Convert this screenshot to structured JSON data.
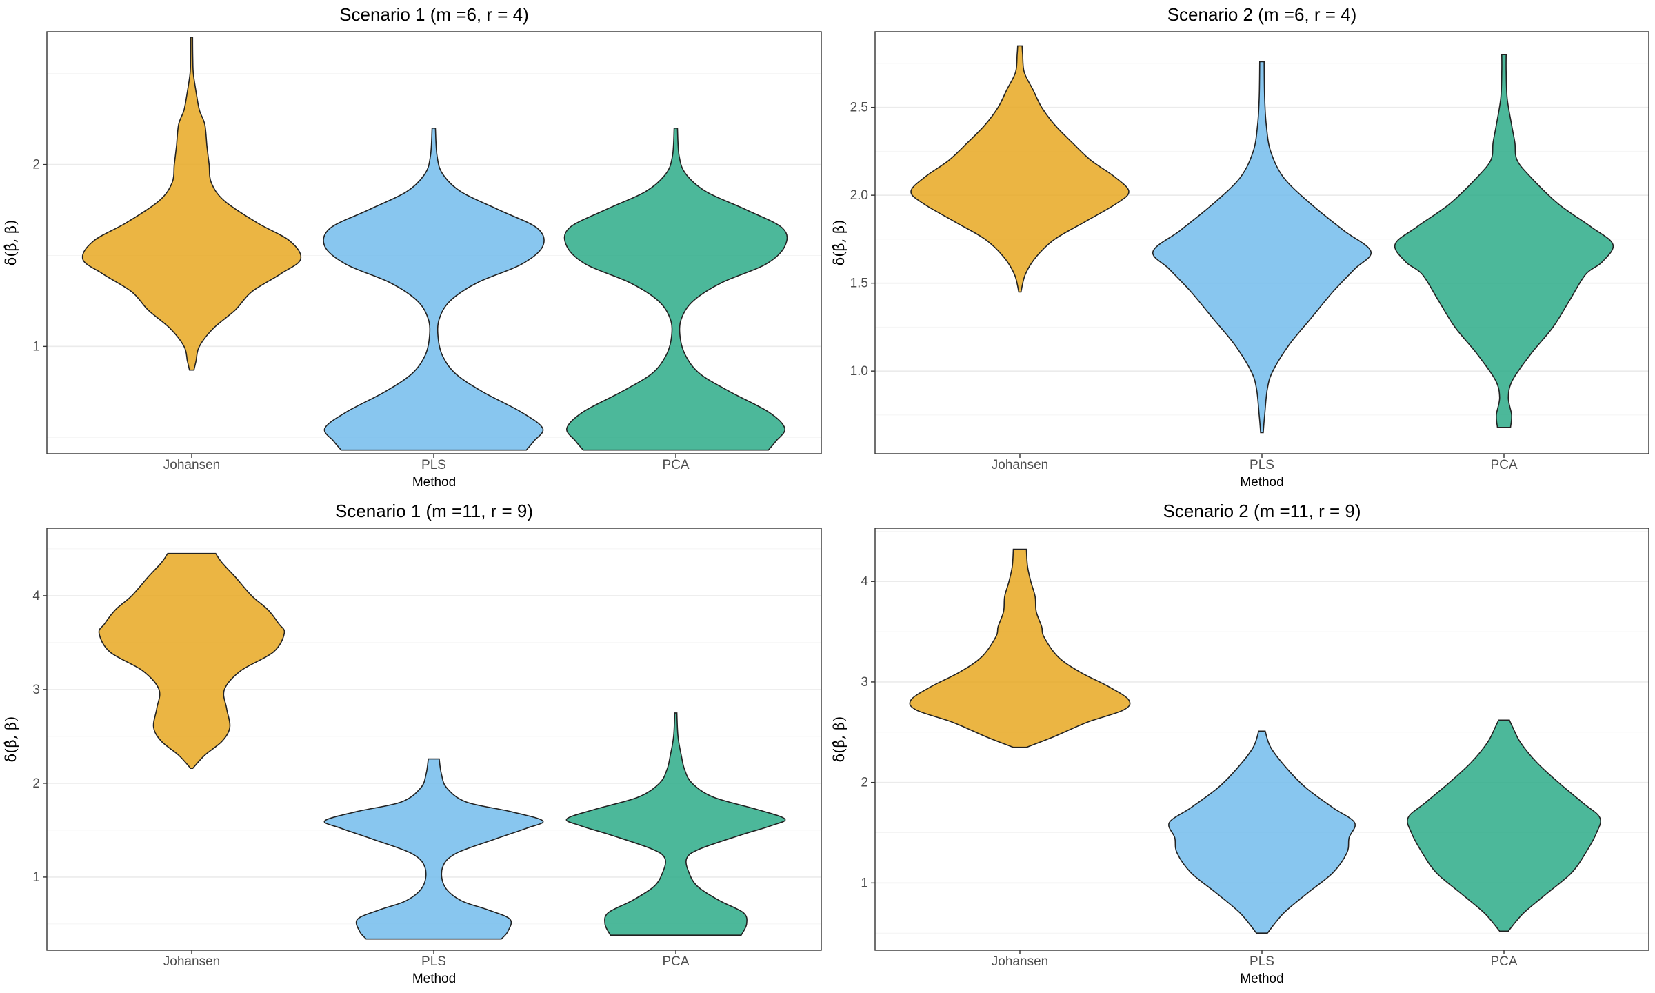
{
  "chart_data": [
    {
      "type": "violin",
      "title": "Scenario 1 (m =6, r = 4)",
      "xlabel": "Method",
      "ylabel": "δ(β̂, β)",
      "categories": [
        "Johansen",
        "PLS",
        "PCA"
      ],
      "ylim": [
        0.41,
        2.73
      ],
      "yticks": [
        1,
        2
      ],
      "ytick_labels": [
        "1",
        "2"
      ],
      "series": [
        {
          "name": "Johansen",
          "color": "#E7A51A",
          "density": [
            [
              0.87,
              0.02
            ],
            [
              0.92,
              0.04
            ],
            [
              1.0,
              0.07
            ],
            [
              1.1,
              0.2
            ],
            [
              1.2,
              0.4
            ],
            [
              1.3,
              0.55
            ],
            [
              1.4,
              0.82
            ],
            [
              1.48,
              1.0
            ],
            [
              1.58,
              0.9
            ],
            [
              1.68,
              0.6
            ],
            [
              1.8,
              0.3
            ],
            [
              1.9,
              0.18
            ],
            [
              2.0,
              0.16
            ],
            [
              2.1,
              0.14
            ],
            [
              2.22,
              0.12
            ],
            [
              2.3,
              0.07
            ],
            [
              2.4,
              0.04
            ],
            [
              2.5,
              0.015
            ],
            [
              2.58,
              0.01
            ],
            [
              2.7,
              0.008
            ]
          ]
        },
        {
          "name": "PLS",
          "color": "#6EBAEB",
          "density": [
            [
              0.43,
              0.85
            ],
            [
              0.48,
              0.92
            ],
            [
              0.55,
              1.0
            ],
            [
              0.64,
              0.8
            ],
            [
              0.75,
              0.45
            ],
            [
              0.85,
              0.2
            ],
            [
              0.95,
              0.08
            ],
            [
              1.05,
              0.04
            ],
            [
              1.15,
              0.05
            ],
            [
              1.25,
              0.15
            ],
            [
              1.35,
              0.4
            ],
            [
              1.45,
              0.8
            ],
            [
              1.55,
              1.0
            ],
            [
              1.65,
              0.95
            ],
            [
              1.75,
              0.6
            ],
            [
              1.85,
              0.25
            ],
            [
              1.95,
              0.08
            ],
            [
              2.05,
              0.03
            ],
            [
              2.2,
              0.015
            ]
          ]
        },
        {
          "name": "PCA",
          "color": "#24A884",
          "density": [
            [
              0.43,
              0.85
            ],
            [
              0.48,
              0.92
            ],
            [
              0.55,
              1.0
            ],
            [
              0.64,
              0.85
            ],
            [
              0.75,
              0.5
            ],
            [
              0.85,
              0.22
            ],
            [
              0.95,
              0.09
            ],
            [
              1.05,
              0.04
            ],
            [
              1.15,
              0.05
            ],
            [
              1.25,
              0.16
            ],
            [
              1.35,
              0.42
            ],
            [
              1.45,
              0.82
            ],
            [
              1.55,
              1.0
            ],
            [
              1.65,
              0.98
            ],
            [
              1.75,
              0.65
            ],
            [
              1.85,
              0.28
            ],
            [
              1.95,
              0.09
            ],
            [
              2.05,
              0.03
            ],
            [
              2.2,
              0.015
            ]
          ]
        }
      ]
    },
    {
      "type": "violin",
      "title": "Scenario 2 (m =6, r = 4)",
      "xlabel": "Method",
      "ylabel": "δ(β̂, β)",
      "categories": [
        "Johansen",
        "PLS",
        "PCA"
      ],
      "ylim": [
        0.53,
        2.93
      ],
      "yticks": [
        1.0,
        1.5,
        2.0,
        2.5
      ],
      "ytick_labels": [
        "1.0",
        "1.5",
        "2.0",
        "2.5"
      ],
      "series": [
        {
          "name": "Johansen",
          "color": "#E7A51A",
          "density": [
            [
              1.45,
              0.01
            ],
            [
              1.55,
              0.05
            ],
            [
              1.65,
              0.15
            ],
            [
              1.75,
              0.32
            ],
            [
              1.85,
              0.6
            ],
            [
              1.95,
              0.88
            ],
            [
              2.02,
              1.0
            ],
            [
              2.1,
              0.88
            ],
            [
              2.2,
              0.65
            ],
            [
              2.3,
              0.48
            ],
            [
              2.4,
              0.32
            ],
            [
              2.5,
              0.2
            ],
            [
              2.6,
              0.12
            ],
            [
              2.7,
              0.04
            ],
            [
              2.8,
              0.025
            ],
            [
              2.85,
              0.02
            ]
          ]
        },
        {
          "name": "PLS",
          "color": "#6EBAEB",
          "density": [
            [
              0.65,
              0.012
            ],
            [
              0.75,
              0.025
            ],
            [
              0.9,
              0.05
            ],
            [
              1.0,
              0.1
            ],
            [
              1.15,
              0.25
            ],
            [
              1.3,
              0.45
            ],
            [
              1.45,
              0.65
            ],
            [
              1.58,
              0.85
            ],
            [
              1.68,
              1.0
            ],
            [
              1.8,
              0.75
            ],
            [
              1.95,
              0.45
            ],
            [
              2.1,
              0.2
            ],
            [
              2.25,
              0.08
            ],
            [
              2.4,
              0.04
            ],
            [
              2.55,
              0.025
            ],
            [
              2.76,
              0.02
            ]
          ]
        },
        {
          "name": "PCA",
          "color": "#24A884",
          "density": [
            [
              0.68,
              0.06
            ],
            [
              0.75,
              0.07
            ],
            [
              0.85,
              0.04
            ],
            [
              0.95,
              0.08
            ],
            [
              1.1,
              0.25
            ],
            [
              1.25,
              0.45
            ],
            [
              1.4,
              0.6
            ],
            [
              1.55,
              0.75
            ],
            [
              1.62,
              0.9
            ],
            [
              1.72,
              1.0
            ],
            [
              1.82,
              0.8
            ],
            [
              1.95,
              0.5
            ],
            [
              2.1,
              0.25
            ],
            [
              2.2,
              0.12
            ],
            [
              2.3,
              0.1
            ],
            [
              2.4,
              0.07
            ],
            [
              2.55,
              0.03
            ],
            [
              2.7,
              0.02
            ],
            [
              2.8,
              0.02
            ]
          ]
        }
      ]
    },
    {
      "type": "violin",
      "title": "Scenario 1 (m =11, r = 9)",
      "xlabel": "Method",
      "ylabel": "δ(β̂, β)",
      "categories": [
        "Johansen",
        "PLS",
        "PCA"
      ],
      "ylim": [
        0.22,
        4.72
      ],
      "yticks": [
        1,
        2,
        3,
        4
      ],
      "ytick_labels": [
        "1",
        "2",
        "3",
        "4"
      ],
      "series": [
        {
          "name": "Johansen",
          "color": "#E7A51A",
          "density": [
            [
              2.16,
              0.01
            ],
            [
              2.3,
              0.12
            ],
            [
              2.45,
              0.28
            ],
            [
              2.6,
              0.35
            ],
            [
              2.8,
              0.32
            ],
            [
              3.0,
              0.3
            ],
            [
              3.2,
              0.45
            ],
            [
              3.4,
              0.75
            ],
            [
              3.6,
              0.85
            ],
            [
              3.7,
              0.8
            ],
            [
              3.85,
              0.7
            ],
            [
              4.0,
              0.55
            ],
            [
              4.2,
              0.4
            ],
            [
              4.35,
              0.28
            ],
            [
              4.45,
              0.22
            ]
          ]
        },
        {
          "name": "PLS",
          "color": "#6EBAEB",
          "density": [
            [
              0.34,
              0.62
            ],
            [
              0.42,
              0.68
            ],
            [
              0.55,
              0.7
            ],
            [
              0.65,
              0.5
            ],
            [
              0.75,
              0.25
            ],
            [
              0.9,
              0.1
            ],
            [
              1.1,
              0.08
            ],
            [
              1.25,
              0.2
            ],
            [
              1.4,
              0.55
            ],
            [
              1.52,
              0.85
            ],
            [
              1.6,
              1.0
            ],
            [
              1.7,
              0.7
            ],
            [
              1.8,
              0.3
            ],
            [
              1.95,
              0.12
            ],
            [
              2.1,
              0.07
            ],
            [
              2.26,
              0.05
            ]
          ]
        },
        {
          "name": "PCA",
          "color": "#24A884",
          "density": [
            [
              0.38,
              0.6
            ],
            [
              0.5,
              0.65
            ],
            [
              0.62,
              0.62
            ],
            [
              0.75,
              0.4
            ],
            [
              0.9,
              0.2
            ],
            [
              1.05,
              0.12
            ],
            [
              1.2,
              0.1
            ],
            [
              1.3,
              0.22
            ],
            [
              1.45,
              0.6
            ],
            [
              1.55,
              0.88
            ],
            [
              1.62,
              1.0
            ],
            [
              1.72,
              0.75
            ],
            [
              1.85,
              0.35
            ],
            [
              2.0,
              0.15
            ],
            [
              2.15,
              0.08
            ],
            [
              2.3,
              0.05
            ],
            [
              2.5,
              0.02
            ],
            [
              2.75,
              0.01
            ]
          ]
        }
      ]
    },
    {
      "type": "violin",
      "title": "Scenario 2 (m =11, r = 9)",
      "xlabel": "Method",
      "ylabel": "δ(β̂, β)",
      "categories": [
        "Johansen",
        "PLS",
        "PCA"
      ],
      "ylim": [
        0.33,
        4.53
      ],
      "yticks": [
        1,
        2,
        3,
        4
      ],
      "ytick_labels": [
        "1",
        "2",
        "3",
        "4"
      ],
      "series": [
        {
          "name": "Johansen",
          "color": "#E7A51A",
          "density": [
            [
              2.35,
              0.06
            ],
            [
              2.45,
              0.3
            ],
            [
              2.6,
              0.62
            ],
            [
              2.72,
              0.95
            ],
            [
              2.82,
              1.0
            ],
            [
              2.95,
              0.82
            ],
            [
              3.1,
              0.55
            ],
            [
              3.25,
              0.35
            ],
            [
              3.45,
              0.22
            ],
            [
              3.55,
              0.2
            ],
            [
              3.7,
              0.15
            ],
            [
              3.85,
              0.14
            ],
            [
              4.0,
              0.1
            ],
            [
              4.15,
              0.07
            ],
            [
              4.32,
              0.06
            ]
          ]
        },
        {
          "name": "PLS",
          "color": "#6EBAEB",
          "density": [
            [
              0.5,
              0.05
            ],
            [
              0.7,
              0.2
            ],
            [
              0.9,
              0.42
            ],
            [
              1.1,
              0.65
            ],
            [
              1.3,
              0.78
            ],
            [
              1.45,
              0.8
            ],
            [
              1.6,
              0.85
            ],
            [
              1.75,
              0.65
            ],
            [
              1.95,
              0.4
            ],
            [
              2.15,
              0.22
            ],
            [
              2.35,
              0.08
            ],
            [
              2.51,
              0.03
            ]
          ]
        },
        {
          "name": "PCA",
          "color": "#24A884",
          "density": [
            [
              0.52,
              0.04
            ],
            [
              0.7,
              0.18
            ],
            [
              0.9,
              0.4
            ],
            [
              1.1,
              0.62
            ],
            [
              1.3,
              0.75
            ],
            [
              1.5,
              0.85
            ],
            [
              1.65,
              0.88
            ],
            [
              1.8,
              0.72
            ],
            [
              2.0,
              0.5
            ],
            [
              2.2,
              0.3
            ],
            [
              2.4,
              0.15
            ],
            [
              2.55,
              0.08
            ],
            [
              2.62,
              0.05
            ]
          ]
        }
      ]
    }
  ]
}
